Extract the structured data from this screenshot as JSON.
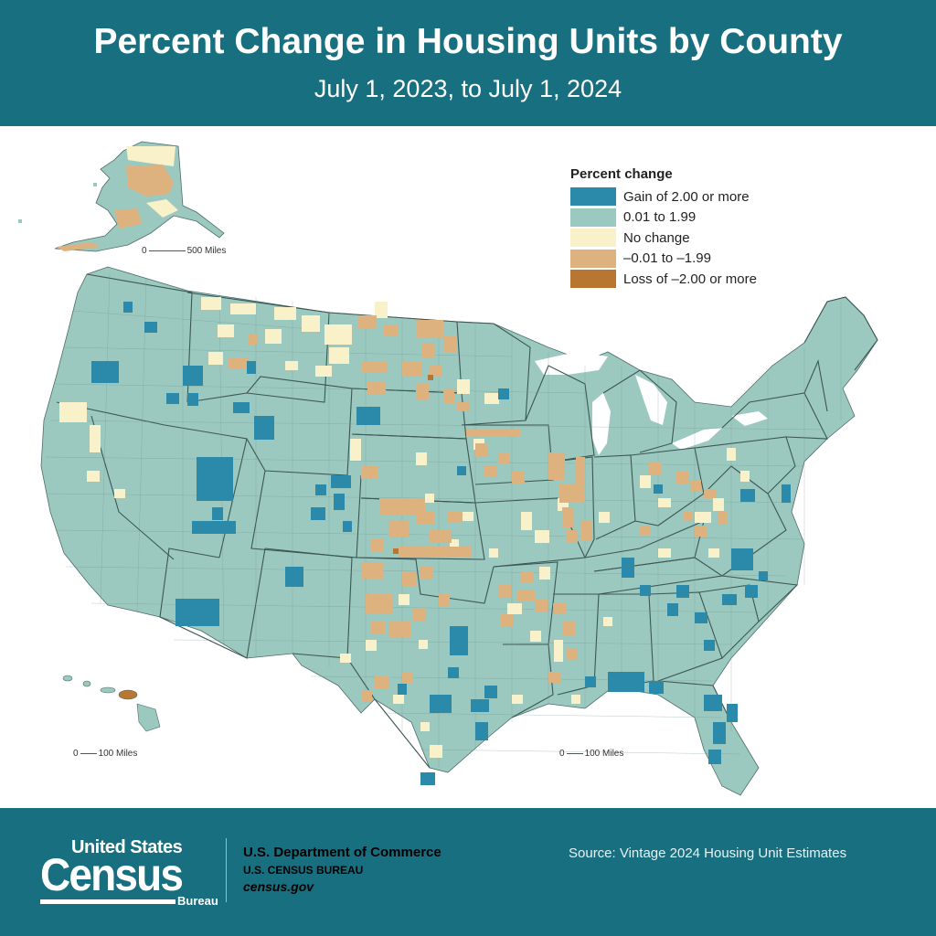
{
  "header": {
    "title": "Percent Change in Housing Units by County",
    "subtitle": "July 1, 2023, to July 1, 2024"
  },
  "legend": {
    "title": "Percent change",
    "items": [
      {
        "label": "Gain of 2.00 or more",
        "color": "#2b8aaa"
      },
      {
        "label": "0.01 to 1.99",
        "color": "#9cc9bf"
      },
      {
        "label": "No change",
        "color": "#f8f1c9"
      },
      {
        "label": "–0.01 to –1.99",
        "color": "#ddb27e"
      },
      {
        "label": "Loss of –2.00 or more",
        "color": "#b87630"
      }
    ]
  },
  "scales": {
    "alaska": {
      "zero": "0",
      "label": "500 Miles"
    },
    "hawaii": {
      "zero": "0",
      "label": "100 Miles"
    },
    "conus": {
      "zero": "0",
      "label": "100 Miles"
    }
  },
  "footer": {
    "logo": {
      "line1": "United States",
      "line2": "Census",
      "line3": "Bureau"
    },
    "department": "U.S. Department of Commerce",
    "bureau": "U.S. CENSUS BUREAU",
    "website": "census.gov",
    "source": "Source: Vintage 2024 Housing Unit Estimates"
  },
  "colors": {
    "header_bg": "#176f7f",
    "gain": "#2b8aaa",
    "small_gain": "#9cc9bf",
    "no_change": "#f8f1c9",
    "small_loss": "#ddb27e",
    "loss": "#b87630"
  }
}
